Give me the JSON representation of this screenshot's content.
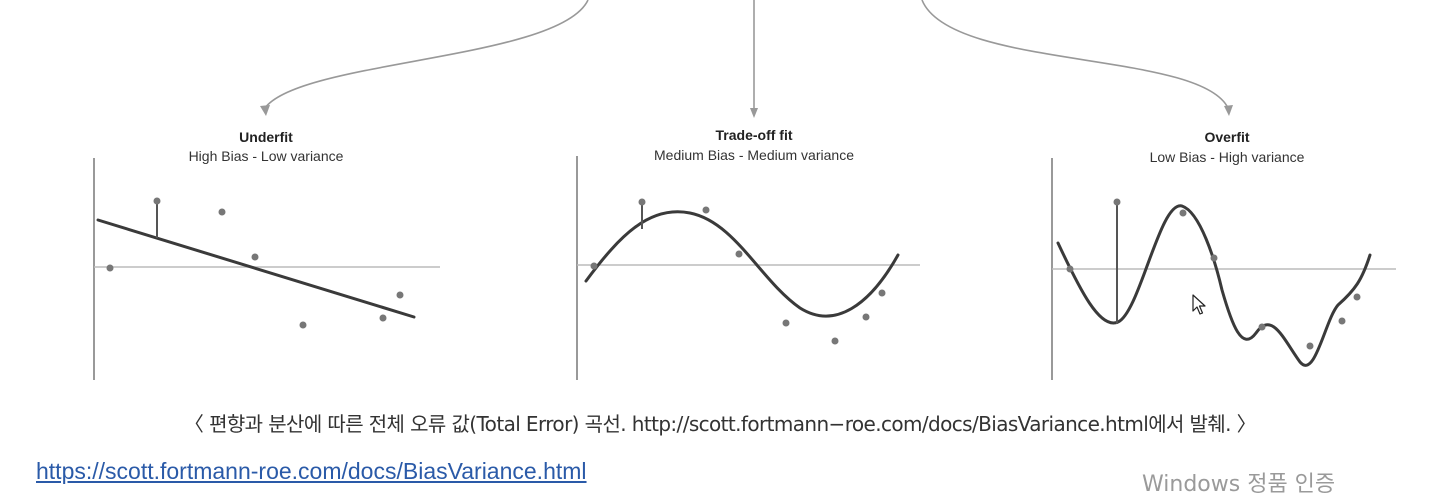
{
  "panels": [
    {
      "title": "Underfit",
      "subtitle": "High Bias - Low variance",
      "fit": "line"
    },
    {
      "title": "Trade-off fit",
      "subtitle": "Medium Bias - Medium variance",
      "fit": "smooth-curve"
    },
    {
      "title": "Overfit",
      "subtitle": "Low Bias - High variance",
      "fit": "wiggly-curve"
    }
  ],
  "caption": "〈 편향과 분산에 따른 전체 오류 값(Total Error) 곡선. http://scott.fortmann−roe.com/docs/BiasVariance.html에서 발췌. 〉",
  "source_link": "https://scott.fortmann-roe.com/docs/BiasVariance.html",
  "watermark": "Windows 정품 인증",
  "icons": {
    "cursor": "mouse-pointer-icon"
  },
  "colors": {
    "link": "#2a5aa8",
    "line": "#3a3a3a",
    "axis": "#999999"
  }
}
